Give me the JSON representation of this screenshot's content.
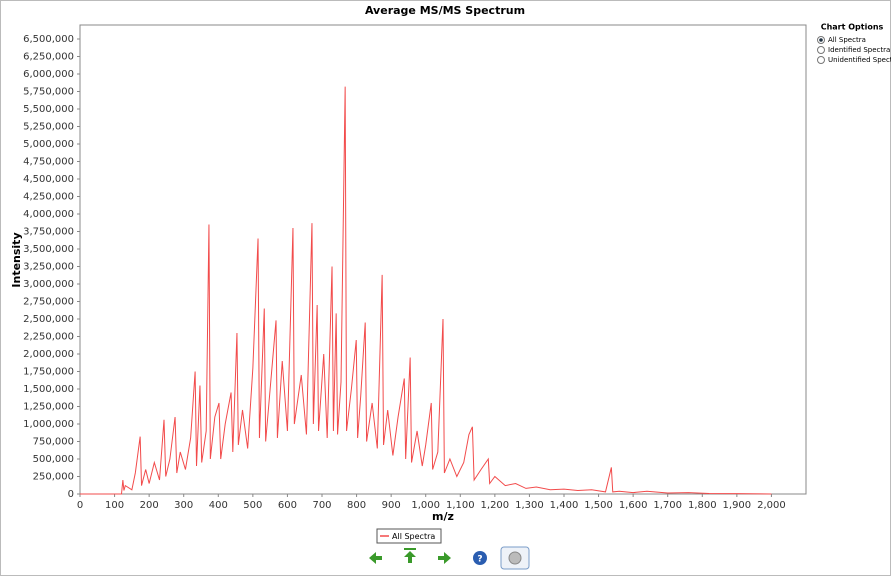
{
  "chart_data": {
    "type": "line",
    "title": "Average MS/MS Spectrum",
    "x_label": "m/z",
    "y_label": "Intensity",
    "x": [
      0,
      120,
      124,
      127,
      131,
      150,
      160,
      174,
      178,
      190,
      200,
      215,
      230,
      243,
      248,
      260,
      275,
      280,
      290,
      305,
      320,
      333,
      337,
      347,
      352,
      365,
      373,
      377,
      390,
      402,
      407,
      420,
      437,
      442,
      454,
      458,
      470,
      485,
      500,
      515,
      519,
      533,
      537,
      550,
      567,
      571,
      585,
      600,
      616,
      620,
      640,
      655,
      671,
      675,
      686,
      690,
      705,
      715,
      729,
      733,
      741,
      745,
      755,
      767,
      771,
      785,
      799,
      803,
      812,
      825,
      829,
      845,
      860,
      874,
      878,
      890,
      905,
      920,
      938,
      942,
      955,
      959,
      975,
      990,
      1000,
      1016,
      1020,
      1035,
      1050,
      1054,
      1070,
      1090,
      1110,
      1125,
      1135,
      1140,
      1160,
      1181,
      1185,
      1200,
      1230,
      1260,
      1290,
      1320,
      1360,
      1400,
      1440,
      1480,
      1520,
      1537,
      1541,
      1560,
      1600,
      1640,
      1700,
      1760,
      1820,
      1900,
      2000
    ],
    "series": [
      {
        "name": "All Spectra",
        "color": "#f24b4b",
        "values": [
          0,
          0,
          200000,
          50000,
          120000,
          60000,
          300000,
          820000,
          120000,
          350000,
          150000,
          450000,
          200000,
          1060000,
          250000,
          500000,
          1100000,
          300000,
          600000,
          350000,
          800000,
          1750000,
          400000,
          1550000,
          450000,
          900000,
          3850000,
          500000,
          1100000,
          1300000,
          500000,
          1000000,
          1450000,
          600000,
          2300000,
          700000,
          1200000,
          650000,
          1800000,
          3650000,
          800000,
          2650000,
          750000,
          1500000,
          2480000,
          800000,
          1900000,
          900000,
          3800000,
          1000000,
          1700000,
          850000,
          3870000,
          1000000,
          2700000,
          900000,
          2000000,
          800000,
          3250000,
          900000,
          2580000,
          850000,
          1600000,
          5820000,
          900000,
          1500000,
          2200000,
          800000,
          1400000,
          2450000,
          750000,
          1300000,
          650000,
          3130000,
          700000,
          1200000,
          550000,
          1100000,
          1650000,
          500000,
          1950000,
          450000,
          900000,
          400000,
          700000,
          1300000,
          350000,
          600000,
          2500000,
          300000,
          500000,
          250000,
          450000,
          850000,
          960000,
          200000,
          350000,
          500000,
          150000,
          250000,
          120000,
          150000,
          80000,
          100000,
          60000,
          70000,
          50000,
          60000,
          30000,
          380000,
          30000,
          40000,
          20000,
          40000,
          15000,
          20000,
          8000,
          5000,
          0
        ]
      }
    ],
    "xlim": [
      0,
      2100
    ],
    "ylim": [
      0,
      6700000
    ],
    "xticks": [
      0,
      100,
      200,
      300,
      400,
      500,
      600,
      700,
      800,
      900,
      {
        "value": 1000,
        "label": "1,000"
      },
      {
        "value": 1100,
        "label": "1,100"
      },
      {
        "value": 1200,
        "label": "1,200"
      },
      {
        "value": 1300,
        "label": "1,300"
      },
      {
        "value": 1400,
        "label": "1,400"
      },
      {
        "value": 1500,
        "label": "1,500"
      },
      {
        "value": 1600,
        "label": "1,600"
      },
      {
        "value": 1700,
        "label": "1,700"
      },
      {
        "value": 1800,
        "label": "1,800"
      },
      {
        "value": 1900,
        "label": "1,900"
      },
      {
        "value": 2000,
        "label": "2,000"
      }
    ],
    "yticks": [
      0,
      {
        "value": 250000,
        "label": "250,000"
      },
      {
        "value": 500000,
        "label": "500,000"
      },
      {
        "value": 750000,
        "label": "750,000"
      },
      {
        "value": 1000000,
        "label": "1,000,000"
      },
      {
        "value": 1250000,
        "label": "1,250,000"
      },
      {
        "value": 1500000,
        "label": "1,500,000"
      },
      {
        "value": 1750000,
        "label": "1,750,000"
      },
      {
        "value": 2000000,
        "label": "2,000,000"
      },
      {
        "value": 2250000,
        "label": "2,250,000"
      },
      {
        "value": 2500000,
        "label": "2,500,000"
      },
      {
        "value": 2750000,
        "label": "2,750,000"
      },
      {
        "value": 3000000,
        "label": "3,000,000"
      },
      {
        "value": 3250000,
        "label": "3,250,000"
      },
      {
        "value": 3500000,
        "label": "3,500,000"
      },
      {
        "value": 3750000,
        "label": "3,750,000"
      },
      {
        "value": 4000000,
        "label": "4,000,000"
      },
      {
        "value": 4250000,
        "label": "4,250,000"
      },
      {
        "value": 4500000,
        "label": "4,500,000"
      },
      {
        "value": 4750000,
        "label": "4,750,000"
      },
      {
        "value": 5000000,
        "label": "5,000,000"
      },
      {
        "value": 5250000,
        "label": "5,250,000"
      },
      {
        "value": 5500000,
        "label": "5,500,000"
      },
      {
        "value": 5750000,
        "label": "5,750,000"
      },
      {
        "value": 6000000,
        "label": "6,000,000"
      },
      {
        "value": 6250000,
        "label": "6,250,000"
      },
      {
        "value": 6500000,
        "label": "6,500,000"
      }
    ],
    "grid": false,
    "legend": "bottom"
  },
  "chart_options": {
    "title": "Chart Options",
    "options": [
      "All Spectra",
      "Identified Spectra",
      "Unidentified Spectra"
    ],
    "selected": 0
  }
}
